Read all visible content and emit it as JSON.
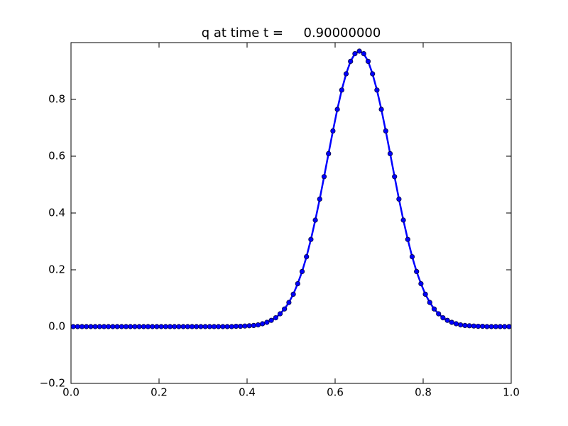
{
  "chart_data": {
    "type": "line",
    "title": "q at time t =     0.90000000",
    "x": [
      0.005,
      0.015,
      0.025,
      0.035,
      0.045,
      0.055,
      0.065,
      0.075,
      0.085,
      0.095,
      0.105,
      0.115,
      0.125,
      0.135,
      0.145,
      0.155,
      0.165,
      0.175,
      0.185,
      0.195,
      0.205,
      0.215,
      0.225,
      0.235,
      0.245,
      0.255,
      0.265,
      0.275,
      0.285,
      0.295,
      0.305,
      0.315,
      0.325,
      0.335,
      0.345,
      0.355,
      0.365,
      0.375,
      0.385,
      0.395,
      0.405,
      0.415,
      0.425,
      0.435,
      0.445,
      0.455,
      0.465,
      0.475,
      0.485,
      0.495,
      0.505,
      0.515,
      0.525,
      0.535,
      0.545,
      0.555,
      0.565,
      0.575,
      0.585,
      0.595,
      0.605,
      0.615,
      0.625,
      0.635,
      0.645,
      0.655,
      0.665,
      0.675,
      0.685,
      0.695,
      0.705,
      0.715,
      0.725,
      0.735,
      0.745,
      0.755,
      0.765,
      0.775,
      0.785,
      0.795,
      0.805,
      0.815,
      0.825,
      0.835,
      0.845,
      0.855,
      0.865,
      0.875,
      0.885,
      0.895,
      0.905,
      0.915,
      0.925,
      0.935,
      0.945,
      0.955,
      0.965,
      0.975,
      0.985,
      0.995
    ],
    "series": [
      {
        "color": "#0000ff",
        "values": [
          0,
          0,
          0,
          0,
          0,
          0,
          0,
          0,
          0,
          0,
          0,
          0,
          0,
          0,
          0,
          0,
          0,
          0,
          0,
          0,
          0,
          0,
          0,
          0,
          0,
          0,
          0,
          0,
          0,
          0,
          0,
          0,
          0,
          0,
          0,
          0,
          0,
          0.001,
          0.001,
          0.002,
          0.003,
          0.004,
          0.006,
          0.01,
          0.015,
          0.022,
          0.031,
          0.045,
          0.062,
          0.085,
          0.114,
          0.151,
          0.194,
          0.246,
          0.307,
          0.375,
          0.449,
          0.528,
          0.609,
          0.689,
          0.765,
          0.833,
          0.89,
          0.934,
          0.961,
          0.97,
          0.961,
          0.934,
          0.89,
          0.833,
          0.765,
          0.689,
          0.609,
          0.528,
          0.449,
          0.375,
          0.307,
          0.246,
          0.194,
          0.151,
          0.114,
          0.085,
          0.062,
          0.045,
          0.031,
          0.022,
          0.015,
          0.01,
          0.006,
          0.004,
          0.003,
          0.002,
          0.001,
          0.001,
          0,
          0,
          0,
          0,
          0,
          0
        ]
      }
    ],
    "xlim": [
      0,
      1
    ],
    "ylim": [
      -0.2,
      1
    ],
    "xticks": [
      {
        "value": 0,
        "label": "0.0"
      },
      0.2,
      0.4,
      0.6,
      0.8,
      {
        "value": 1,
        "label": "1.0"
      }
    ],
    "yticks": [
      {
        "value": -0.2,
        "label": "−0.2"
      },
      {
        "value": 0,
        "label": "0.0"
      },
      0.2,
      0.4,
      0.6,
      0.8
    ]
  }
}
